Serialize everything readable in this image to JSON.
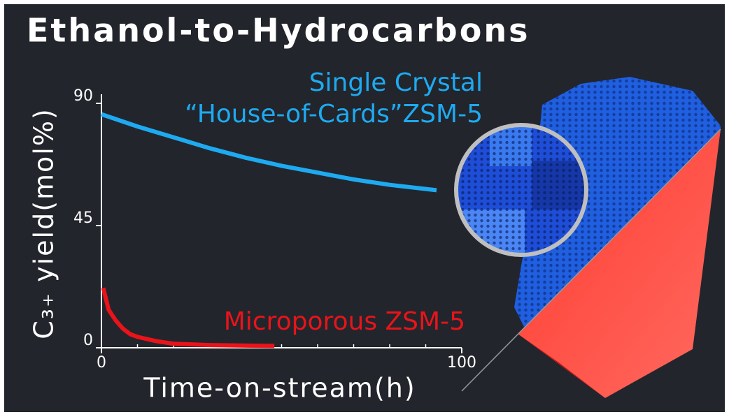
{
  "chart_data": {
    "type": "line",
    "title": "Ethanol-to-Hydrocarbons",
    "x_label": "Time-on-stream(h)",
    "y_label": "C₃₊ yield(mol%)",
    "xlim": [
      0,
      100
    ],
    "xticks": [
      0,
      100
    ],
    "xminorticks": [
      10,
      20,
      30,
      40,
      50,
      60,
      70,
      80,
      90
    ],
    "ylim": [
      0,
      90
    ],
    "yticks": [
      0,
      45,
      90
    ],
    "series": [
      {
        "name": "Single Crystal\n“House-of-Cards”ZSM-5",
        "color": "#1eaaf1",
        "x": [
          0,
          10,
          20,
          30,
          40,
          50,
          60,
          70,
          80,
          93
        ],
        "values": [
          86,
          81.5,
          77.5,
          73.5,
          70,
          67,
          64.5,
          62,
          60,
          58
        ]
      },
      {
        "name": "Microporous ZSM-5",
        "color": "#e8141a",
        "x": [
          0.5,
          2,
          4,
          6,
          8,
          10,
          15,
          20,
          30,
          40,
          48
        ],
        "values": [
          22,
          14,
          10,
          7,
          5,
          4,
          2.5,
          1.5,
          1,
          0.8,
          0.7
        ]
      }
    ]
  }
}
